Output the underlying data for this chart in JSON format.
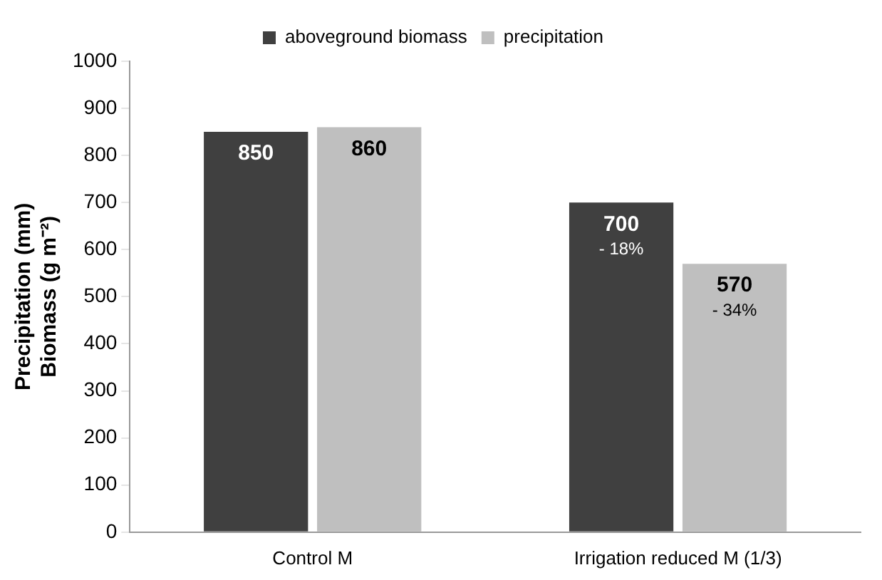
{
  "chart_data": {
    "type": "bar",
    "ylabel": "Precipitation (mm)\nBiomass (g m⁻²)",
    "categories": [
      "Control M",
      "Irrigation reduced M (1/3)"
    ],
    "series": [
      {
        "name": "aboveground biomass",
        "color": "#404040",
        "values": [
          850,
          700
        ]
      },
      {
        "name": "precipitation",
        "color": "#bfbfbf",
        "values": [
          860,
          570
        ]
      }
    ],
    "ylim": [
      0,
      1000
    ],
    "yticks": [
      0,
      100,
      200,
      300,
      400,
      500,
      600,
      700,
      800,
      900,
      1000
    ],
    "grid": false,
    "legend": "top",
    "data_labels": true,
    "annotations": [
      {
        "text": "- 18%",
        "x": "Irrigation reduced M (1/3)",
        "y": 700
      },
      {
        "text": "- 34%",
        "x": "Irrigation reduced M (1/3)",
        "y": 570
      }
    ]
  }
}
